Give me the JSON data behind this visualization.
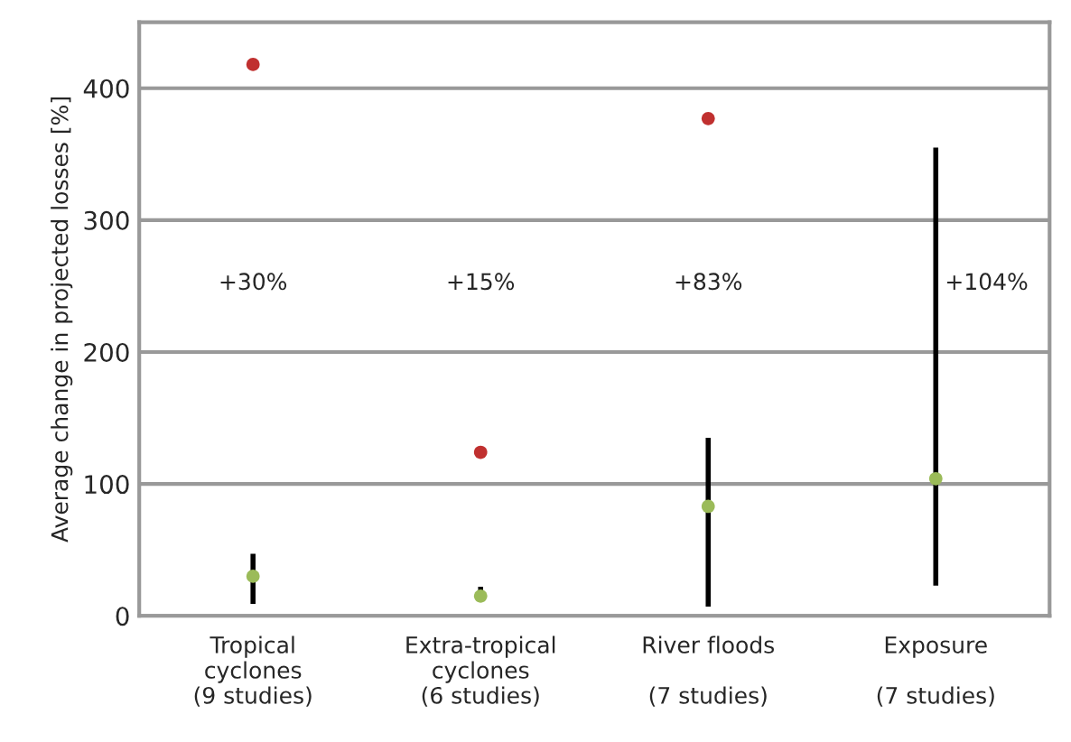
{
  "chart_data": {
    "type": "scatter",
    "ylabel": "Average change in projected losses [%]",
    "categories": [
      "Tropical\ncyclones\n(9 studies)",
      "Extra-tropical\ncyclones\n(6 studies)",
      "River floods\n\n(7 studies)",
      "Exposure\n\n(7 studies)"
    ],
    "series": [
      {
        "color": "#9bbb59",
        "values": [
          30,
          15,
          83,
          104
        ],
        "errors": [
          [
            9,
            47
          ],
          [
            12,
            22
          ],
          [
            7,
            135
          ],
          [
            23,
            355
          ]
        ]
      },
      {
        "color": "#c0302f",
        "values": [
          418,
          124,
          377,
          null
        ]
      }
    ],
    "ylim": [
      0,
      450
    ],
    "yticks": [
      0,
      100,
      200,
      300,
      400
    ],
    "grid": "y",
    "marker": "circle",
    "legend": false,
    "annotations": [
      "+30%",
      "+15%",
      "+83%",
      "+104%"
    ]
  }
}
